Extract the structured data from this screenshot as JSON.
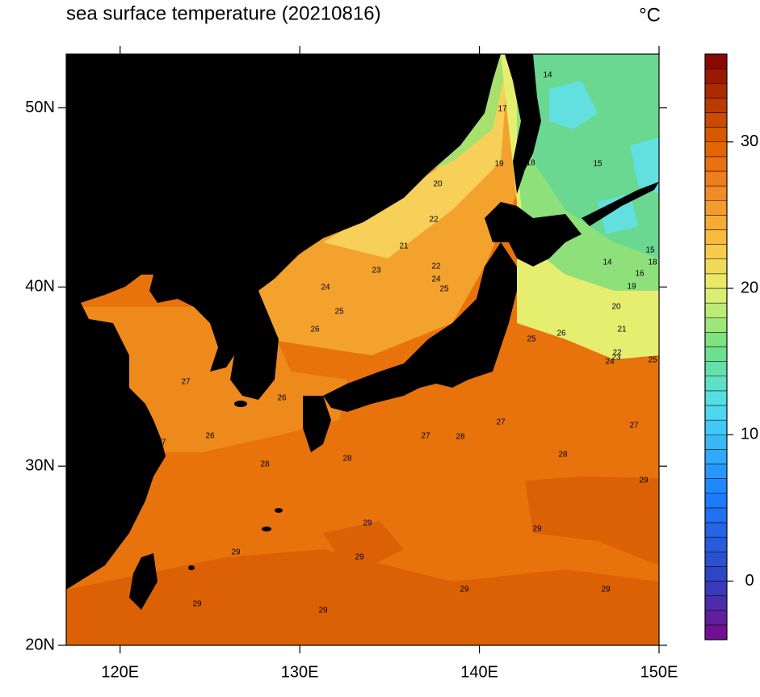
{
  "title": "sea surface temperature (20210816)",
  "unit": "°C",
  "map": {
    "lonlim": [
      117,
      150
    ],
    "latlim": [
      20,
      53
    ],
    "xticks": [
      {
        "value": 120,
        "label": "120E"
      },
      {
        "value": 130,
        "label": "130E"
      },
      {
        "value": 140,
        "label": "140E"
      },
      {
        "value": 150,
        "label": "150E"
      }
    ],
    "yticks": [
      {
        "value": 20,
        "label": "20N"
      },
      {
        "value": 30,
        "label": "30N"
      },
      {
        "value": 40,
        "label": "40N"
      },
      {
        "value": 50,
        "label": "50N"
      }
    ],
    "contour_labels": [
      14,
      17,
      19,
      18,
      15,
      20,
      22,
      21,
      23,
      22,
      24,
      25,
      24,
      25,
      26,
      25,
      26,
      21,
      20,
      19,
      16,
      14,
      15,
      18,
      22,
      23,
      24,
      25,
      27,
      26,
      26,
      27,
      28,
      28,
      27,
      27,
      27,
      28,
      28,
      29,
      29,
      29,
      29,
      29,
      29,
      29,
      29,
      29
    ]
  },
  "colorbar": {
    "lim": [
      -4,
      36
    ],
    "ticks": [
      0,
      10,
      20,
      30
    ]
  }
}
